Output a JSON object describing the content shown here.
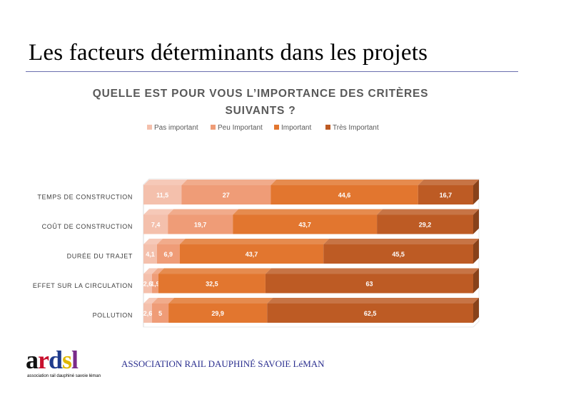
{
  "slide": {
    "title": "Les facteurs déterminants dans les projets"
  },
  "footer": {
    "logo": {
      "letters": [
        {
          "char": "a",
          "color": "#111111"
        },
        {
          "char": "r",
          "color": "#c8102e"
        },
        {
          "char": "d",
          "color": "#1f3b8c"
        },
        {
          "char": "s",
          "color": "#e0b800"
        },
        {
          "char": "l",
          "color": "#7a2a8a"
        }
      ],
      "subtitle": "association rail dauphiné savoie léman"
    },
    "org_name": "ASSOCIATION RAIL DAUPHINÉ SAVOIE LéMAN"
  },
  "chart_data": {
    "type": "bar",
    "orientation": "horizontal",
    "stacked": true,
    "percent_stacked": true,
    "three_d": true,
    "title_lines": [
      "QUELLE EST POUR VOUS L’IMPORTANCE DES CRITÈRES",
      "SUIVANTS ?"
    ],
    "legend_position": "top",
    "grid": false,
    "categories": [
      "TEMPS DE CONSTRUCTION",
      "COÛT DE CONSTRUCTION",
      "DURÉE DU TRAJET",
      "EFFET SUR LA CIRCULATION",
      "POLLUTION"
    ],
    "series": [
      {
        "name": "Pas important",
        "color": "#f4c0ac",
        "values": [
          11.5,
          7.4,
          4.1,
          2.6,
          2.6
        ],
        "labels": [
          "11,5",
          "7,4",
          "4,1",
          "2,6",
          "2,6"
        ]
      },
      {
        "name": "Peu Important",
        "color": "#ef9c77",
        "values": [
          27,
          19.7,
          6.9,
          1.9,
          5
        ],
        "labels": [
          "27",
          "19,7",
          "6,9",
          "1,9",
          "5"
        ]
      },
      {
        "name": "Important",
        "color": "#e2762f",
        "values": [
          44.6,
          43.7,
          43.7,
          32.5,
          29.9
        ],
        "labels": [
          "44,6",
          "43,7",
          "43,7",
          "32,5",
          "29,9"
        ]
      },
      {
        "name": "Très Important",
        "color": "#bd5b24",
        "values": [
          16.7,
          29.2,
          45.5,
          63,
          62.5
        ],
        "labels": [
          "16,7",
          "29,2",
          "45,5",
          "63",
          "62,5"
        ]
      }
    ]
  }
}
